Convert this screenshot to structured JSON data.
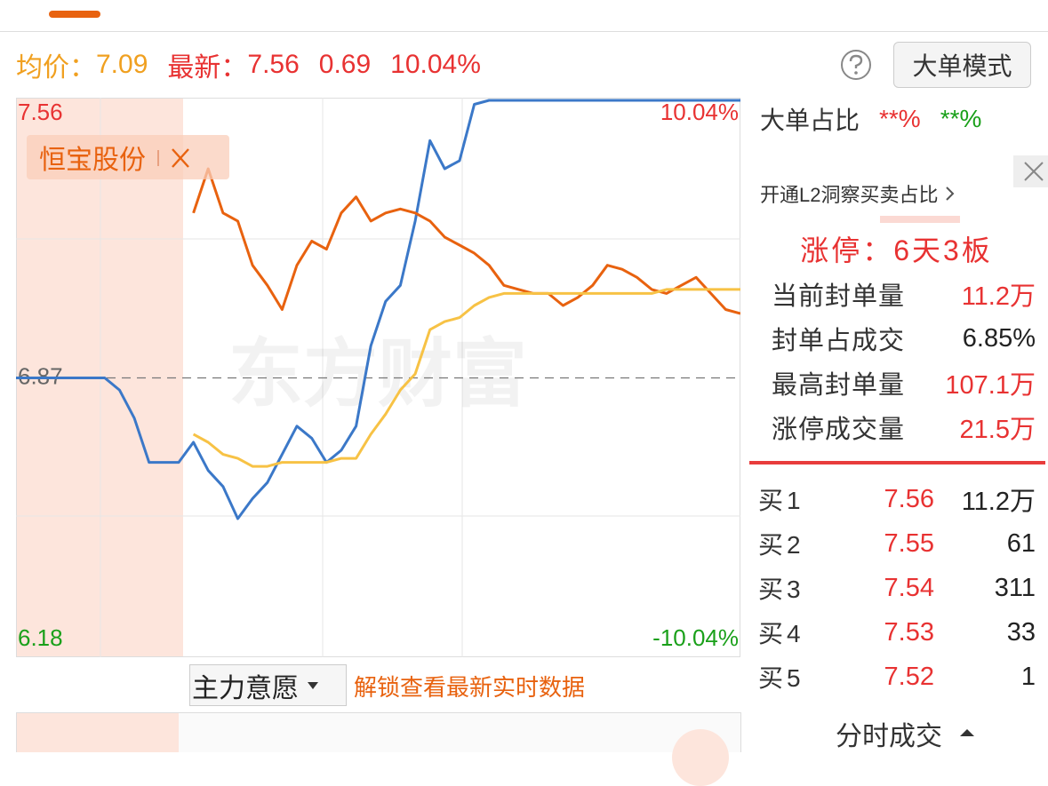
{
  "header": {
    "avg_label": "均价：",
    "avg": "7.09",
    "latest_label": "最新：",
    "latest": "7.56",
    "change": "0.69",
    "change_pct": "10.04%",
    "mode_button": "大单模式"
  },
  "chart_data": {
    "type": "line",
    "tag": "恒宝股份",
    "watermark": "东方财富",
    "ylim": [
      6.18,
      7.56
    ],
    "yticks": [
      6.18,
      6.87,
      7.56
    ],
    "y2lim": [
      -10.04,
      10.04
    ],
    "y2ticks": [
      {
        "value": -10.04,
        "label": "-10.04%"
      },
      {
        "value": 10.04,
        "label": "10.04%"
      }
    ],
    "grid": true,
    "series": [
      {
        "color": "#3b78c8",
        "values": [
          6.87,
          6.87,
          6.87,
          6.87,
          6.87,
          6.87,
          6.87,
          6.84,
          6.77,
          6.66,
          6.66,
          6.66,
          6.71,
          6.64,
          6.6,
          6.52,
          6.57,
          6.61,
          6.68,
          6.75,
          6.72,
          6.66,
          6.69,
          6.75,
          6.95,
          7.06,
          7.1,
          7.26,
          7.46,
          7.39,
          7.41,
          7.55,
          7.56,
          7.56,
          7.56,
          7.56,
          7.56,
          7.56,
          7.56,
          7.56,
          7.56,
          7.56,
          7.56,
          7.56,
          7.56,
          7.56,
          7.56,
          7.56,
          7.56,
          7.56
        ]
      },
      {
        "color": "#e8620f",
        "values": [
          null,
          null,
          null,
          null,
          null,
          null,
          null,
          null,
          null,
          null,
          null,
          null,
          7.28,
          7.39,
          7.28,
          7.26,
          7.15,
          7.1,
          7.04,
          7.15,
          7.21,
          7.19,
          7.28,
          7.32,
          7.26,
          7.28,
          7.29,
          7.28,
          7.26,
          7.22,
          7.2,
          7.18,
          7.15,
          7.1,
          7.09,
          7.08,
          7.08,
          7.05,
          7.07,
          7.1,
          7.15,
          7.14,
          7.12,
          7.09,
          7.08,
          7.1,
          7.12,
          7.08,
          7.04,
          7.03
        ]
      },
      {
        "color": "#f7c245",
        "values": [
          null,
          null,
          null,
          null,
          null,
          null,
          null,
          null,
          null,
          null,
          null,
          null,
          6.73,
          6.71,
          6.68,
          6.67,
          6.65,
          6.65,
          6.66,
          6.66,
          6.66,
          6.66,
          6.67,
          6.67,
          6.73,
          6.78,
          6.84,
          6.88,
          6.99,
          7.01,
          7.02,
          7.05,
          7.07,
          7.08,
          7.08,
          7.08,
          7.08,
          7.08,
          7.08,
          7.08,
          7.08,
          7.08,
          7.08,
          7.08,
          7.09,
          7.09,
          7.09,
          7.09,
          7.09,
          7.09
        ]
      }
    ]
  },
  "indicator": {
    "name": "主力意愿",
    "unlock": "解锁查看最新实时数据"
  },
  "big_order": {
    "label": "大单占比",
    "buy": "**%",
    "sell": "**%"
  },
  "l2_promo": "开通L2洞察买卖占比",
  "limit_up": {
    "title": "涨停：6天3板",
    "rows": [
      [
        "当前封单量",
        "11.2万"
      ],
      [
        "封单占成交",
        "6.85%"
      ],
      [
        "最高封单量",
        "107.1万"
      ],
      [
        "涨停成交量",
        "21.5万"
      ]
    ]
  },
  "bids": [
    [
      "买1",
      "7.56",
      "11.2万"
    ],
    [
      "买2",
      "7.55",
      "61"
    ],
    [
      "买3",
      "7.54",
      "311"
    ],
    [
      "买4",
      "7.53",
      "33"
    ],
    [
      "买5",
      "7.52",
      "1"
    ]
  ],
  "trade_tab": "分时成交"
}
